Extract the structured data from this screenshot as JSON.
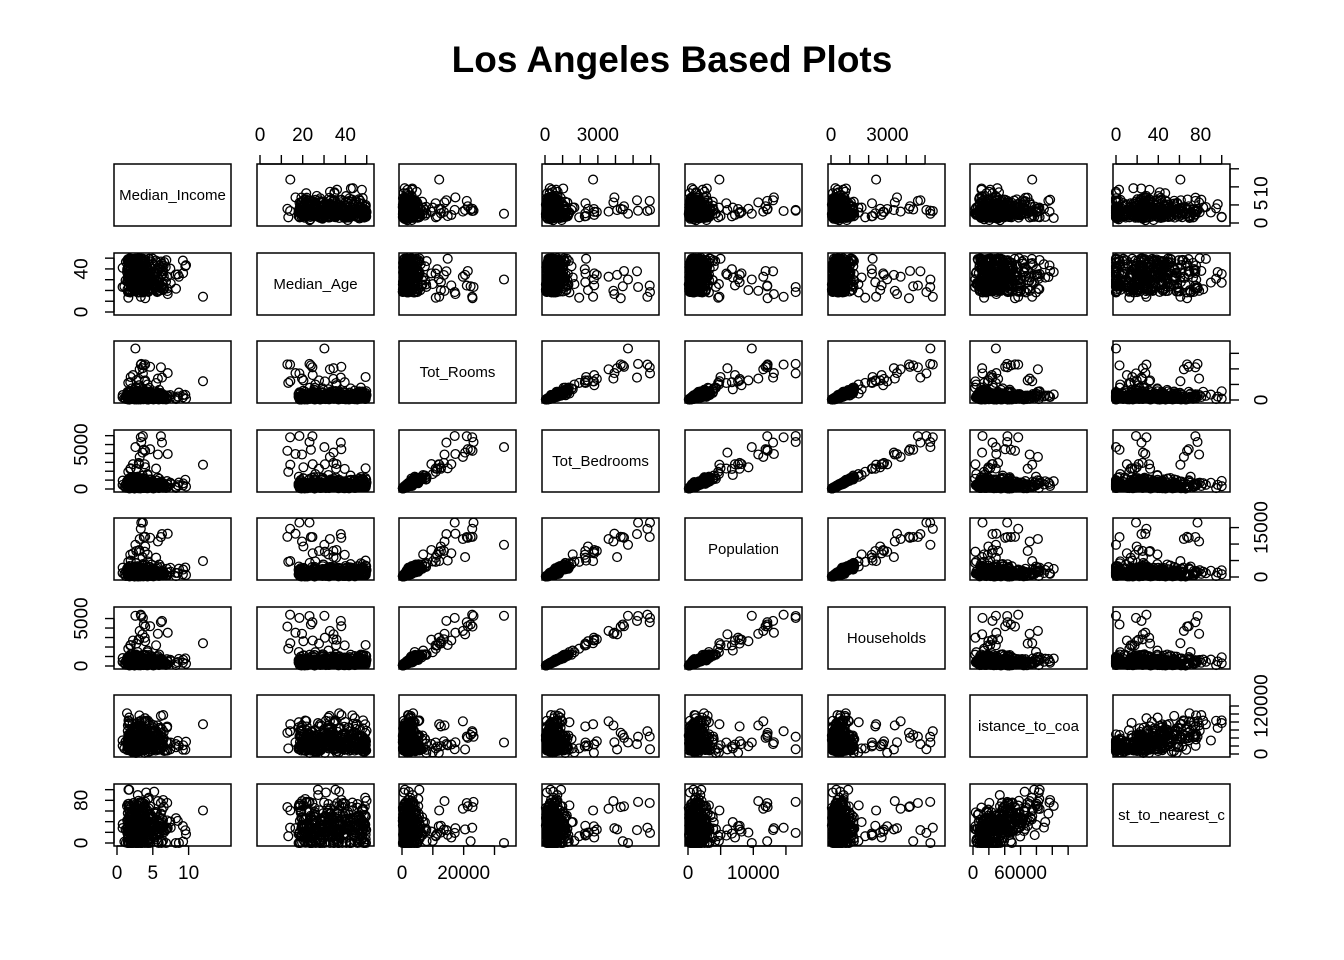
{
  "chart_data": {
    "type": "scatter",
    "subtype": "scatterplot-matrix",
    "title": "Los Angeles Based Plots",
    "marker": "open-circle",
    "colors": {
      "ink": "#000000",
      "background": "#ffffff"
    },
    "variables": [
      {
        "name": "Median_Income",
        "label": "Median_Income",
        "range": [
          0,
          15.5
        ],
        "ticks": [
          0,
          5,
          10
        ],
        "tick_labels": [
          "0",
          "5",
          "10"
        ],
        "axis_side": "bottom",
        "right_ticks": [
          0,
          5,
          10,
          15
        ],
        "right_tick_labels": [
          "0",
          "5",
          "10"
        ]
      },
      {
        "name": "Median_Age",
        "label": "Median_Age",
        "range": [
          0,
          52
        ],
        "ticks": [
          0,
          10,
          20,
          30,
          40,
          50
        ],
        "tick_labels": [
          "0",
          "20",
          "40"
        ],
        "axis_side": "top",
        "left_ticks": [
          0,
          10,
          20,
          30,
          40,
          50
        ],
        "left_tick_labels": [
          "0",
          "40"
        ]
      },
      {
        "name": "Tot_Rooms",
        "label": "Tot_Rooms",
        "range": [
          0,
          36000
        ],
        "ticks": [
          0,
          10000,
          20000,
          30000
        ],
        "tick_labels": [
          "0",
          "20000"
        ],
        "axis_side": "bottom",
        "right_ticks": [
          0,
          10000,
          20000,
          30000
        ],
        "right_tick_labels": [
          "0"
        ]
      },
      {
        "name": "Tot_Bedrooms",
        "label": "Tot_Bedrooms",
        "range": [
          0,
          6300
        ],
        "ticks": [
          0,
          1000,
          2000,
          3000,
          4000,
          5000,
          6000
        ],
        "tick_labels": [
          "0",
          "3000"
        ],
        "axis_side": "top",
        "left_ticks": [
          0,
          1000,
          2000,
          3000,
          4000,
          5000,
          6000
        ],
        "left_tick_labels": [
          "0",
          "5000"
        ]
      },
      {
        "name": "Population",
        "label": "Population",
        "range": [
          0,
          17000
        ],
        "ticks": [
          0,
          5000,
          10000,
          15000
        ],
        "tick_labels": [
          "0",
          "10000"
        ],
        "axis_side": "bottom",
        "right_ticks": [
          0,
          5000,
          10000,
          15000
        ],
        "right_tick_labels": [
          "0",
          "15000"
        ]
      },
      {
        "name": "Households",
        "label": "Households",
        "range": [
          0,
          5900
        ],
        "ticks": [
          0,
          1000,
          2000,
          3000,
          4000,
          5000
        ],
        "tick_labels": [
          "0",
          "3000"
        ],
        "axis_side": "top",
        "left_ticks": [
          0,
          1000,
          2000,
          3000,
          4000,
          5000
        ],
        "left_tick_labels": [
          "0",
          "5000"
        ]
      },
      {
        "name": "Distance_to_coast",
        "label": "istance_to_coa",
        "range": [
          0,
          140000
        ],
        "ticks": [
          0,
          20000,
          40000,
          60000,
          80000,
          100000,
          120000
        ],
        "tick_labels": [
          "0",
          "60000"
        ],
        "axis_side": "bottom",
        "right_ticks": [
          0,
          20000,
          40000,
          60000,
          80000,
          100000,
          120000
        ],
        "right_tick_labels": [
          "0",
          "120000"
        ]
      },
      {
        "name": "Dist_to_nearest_city",
        "label": "st_to_nearest_c",
        "range": [
          0,
          105
        ],
        "ticks": [
          0,
          20,
          40,
          60,
          80,
          100
        ],
        "tick_labels": [
          "0",
          "40",
          "80"
        ],
        "axis_side": "top",
        "left_ticks": [
          0,
          20,
          40,
          60,
          80,
          100
        ],
        "left_tick_labels": [
          "0",
          "80"
        ]
      }
    ]
  }
}
